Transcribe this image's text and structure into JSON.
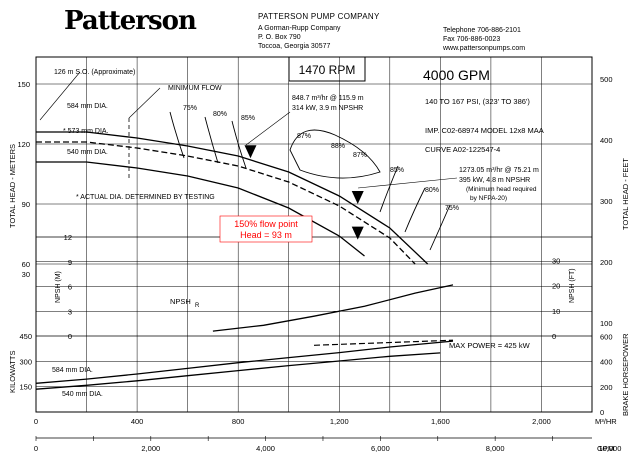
{
  "header": {
    "logo_text": "Patterson",
    "company_name": "PATTERSON PUMP COMPANY",
    "company_sub": "A Gorman-Rupp Company",
    "po_box": "P. O. Box 790",
    "city": "Toccoa, Georgia   30577",
    "telephone": "Telephone 706-886-2101",
    "fax": "Fax 706-886-0023",
    "website": "www.pattersonpumps.com"
  },
  "info": {
    "rpm": "1470 RPM",
    "gpm": "4000 GPM",
    "psi": "140 TO 167 PSI, (323' TO 386')",
    "imp": "IMP.  C02-68974  MODEL 12x8 MAA",
    "curve": "CURVE    A02-122547-4"
  },
  "labels": {
    "shutoff": "126    m S.O. (Approximate)",
    "min_flow": "MINIMUM FLOW",
    "dia_584": "584 mm DIA.",
    "dia_573": "* 573 mm DIA.",
    "dia_540": "540 mm DIA.",
    "actual_dia": "* ACTUAL DIA. DETERMINED BY TESTING",
    "bep_1": "848.7 m³/hr @ 115.9 m",
    "bep_2": "314 kW, 3.9 m NPSHR",
    "rp_1": "1273.05 m³/hr @ 75.21 m",
    "rp_2": "395 kW, 4.8 m NPSHR",
    "rp_3": "(Minimum head required",
    "rp_4": "by NFPA-20)",
    "flow150_1": "150% flow point",
    "flow150_2": "Head = 93 m",
    "npsh_r": "NPSH",
    "npsh_r_sub": "R",
    "max_power": "MAX POWER = 425 kW",
    "power_584": "584 mm DIA.",
    "power_540": "540 mm DIA.",
    "eff_left": [
      "75%",
      "80%",
      "85%"
    ],
    "eff_top": [
      "87%",
      "88%",
      "87%"
    ],
    "eff_right": [
      "85%",
      "80%",
      "75%"
    ]
  },
  "axes": {
    "left_head_title": "TOTAL HEAD - METERS",
    "right_head_title": "TOTAL HEAD - FEET",
    "npsh_m_title": "NPSH (M)",
    "npsh_ft_title": "NPSH (FT)",
    "kw_title": "KILOWATTS",
    "bhp_title": "BRAKE HORSEPOWER",
    "m3hr_unit": "M³/HR",
    "gpm_unit": "GPM",
    "m3hr_ticks": [
      "0",
      "400",
      "800",
      "1,200",
      "1,600",
      "2,000"
    ],
    "gpm_ticks": [
      "0",
      "2,000",
      "4,000",
      "6,000",
      "8,000",
      "10,000"
    ],
    "head_m_ticks": [
      "150",
      "120",
      "90",
      "60"
    ],
    "head_ft_ticks": [
      "500",
      "400",
      "300",
      "200"
    ],
    "npsh_m_ticks": [
      "12",
      "9",
      "6",
      "3",
      "0"
    ],
    "npsh_m_mid_tick": "30",
    "npsh_ft_ticks": [
      "30",
      "20",
      "10",
      "0"
    ],
    "head_ft_mid_tick": "100",
    "kw_ticks": [
      "450",
      "300",
      "150"
    ],
    "bhp_ticks": [
      "600",
      "400",
      "200",
      "0"
    ]
  },
  "chart_data": {
    "type": "line",
    "x_unit": "m3/hr",
    "xlim": [
      0,
      2200
    ],
    "head": {
      "ylim": [
        0,
        160
      ],
      "series": [
        {
          "name": "584 mm DIA.",
          "x": [
            0,
            200,
            400,
            600,
            800,
            1000,
            1200,
            1400,
            1550
          ],
          "y": [
            126,
            126,
            123,
            119,
            114,
            106,
            94,
            78,
            60
          ]
        },
        {
          "name": "* 573 mm DIA.",
          "x": [
            0,
            200,
            400,
            600,
            800,
            1000,
            1200,
            1400,
            1500
          ],
          "y": [
            121,
            121,
            118,
            114,
            109,
            101,
            89,
            73,
            60
          ]
        },
        {
          "name": "540 mm DIA.",
          "x": [
            0,
            200,
            400,
            600,
            800,
            1000,
            1200,
            1300
          ],
          "y": [
            111,
            111,
            108,
            104,
            98,
            88,
            74,
            64
          ]
        }
      ],
      "points": [
        {
          "x": 848.7,
          "y": 115.9
        },
        {
          "x": 1273.05,
          "y": 75.21
        },
        {
          "x": 1273.05,
          "y": 93
        }
      ]
    },
    "npsh": {
      "ylim": [
        0,
        12
      ],
      "series": [
        {
          "name": "NPSHR",
          "x": [
            700,
            900,
            1100,
            1300,
            1500,
            1650
          ],
          "y": [
            0.6,
            1.3,
            2.4,
            3.6,
            5.2,
            6.2
          ]
        }
      ]
    },
    "power": {
      "ylim": [
        0,
        450
      ],
      "series": [
        {
          "name": "584 mm DIA.",
          "x": [
            0,
            200,
            400,
            600,
            800,
            1000,
            1200,
            1400,
            1650
          ],
          "y": [
            170,
            195,
            225,
            258,
            292,
            322,
            352,
            385,
            420
          ]
        },
        {
          "name": "540 mm DIA.",
          "x": [
            0,
            200,
            400,
            600,
            800,
            1000,
            1200,
            1400,
            1600
          ],
          "y": [
            135,
            158,
            185,
            215,
            245,
            275,
            302,
            330,
            350
          ]
        }
      ]
    }
  },
  "colors": {
    "annotation": "#ff0000",
    "line": "#000000"
  }
}
